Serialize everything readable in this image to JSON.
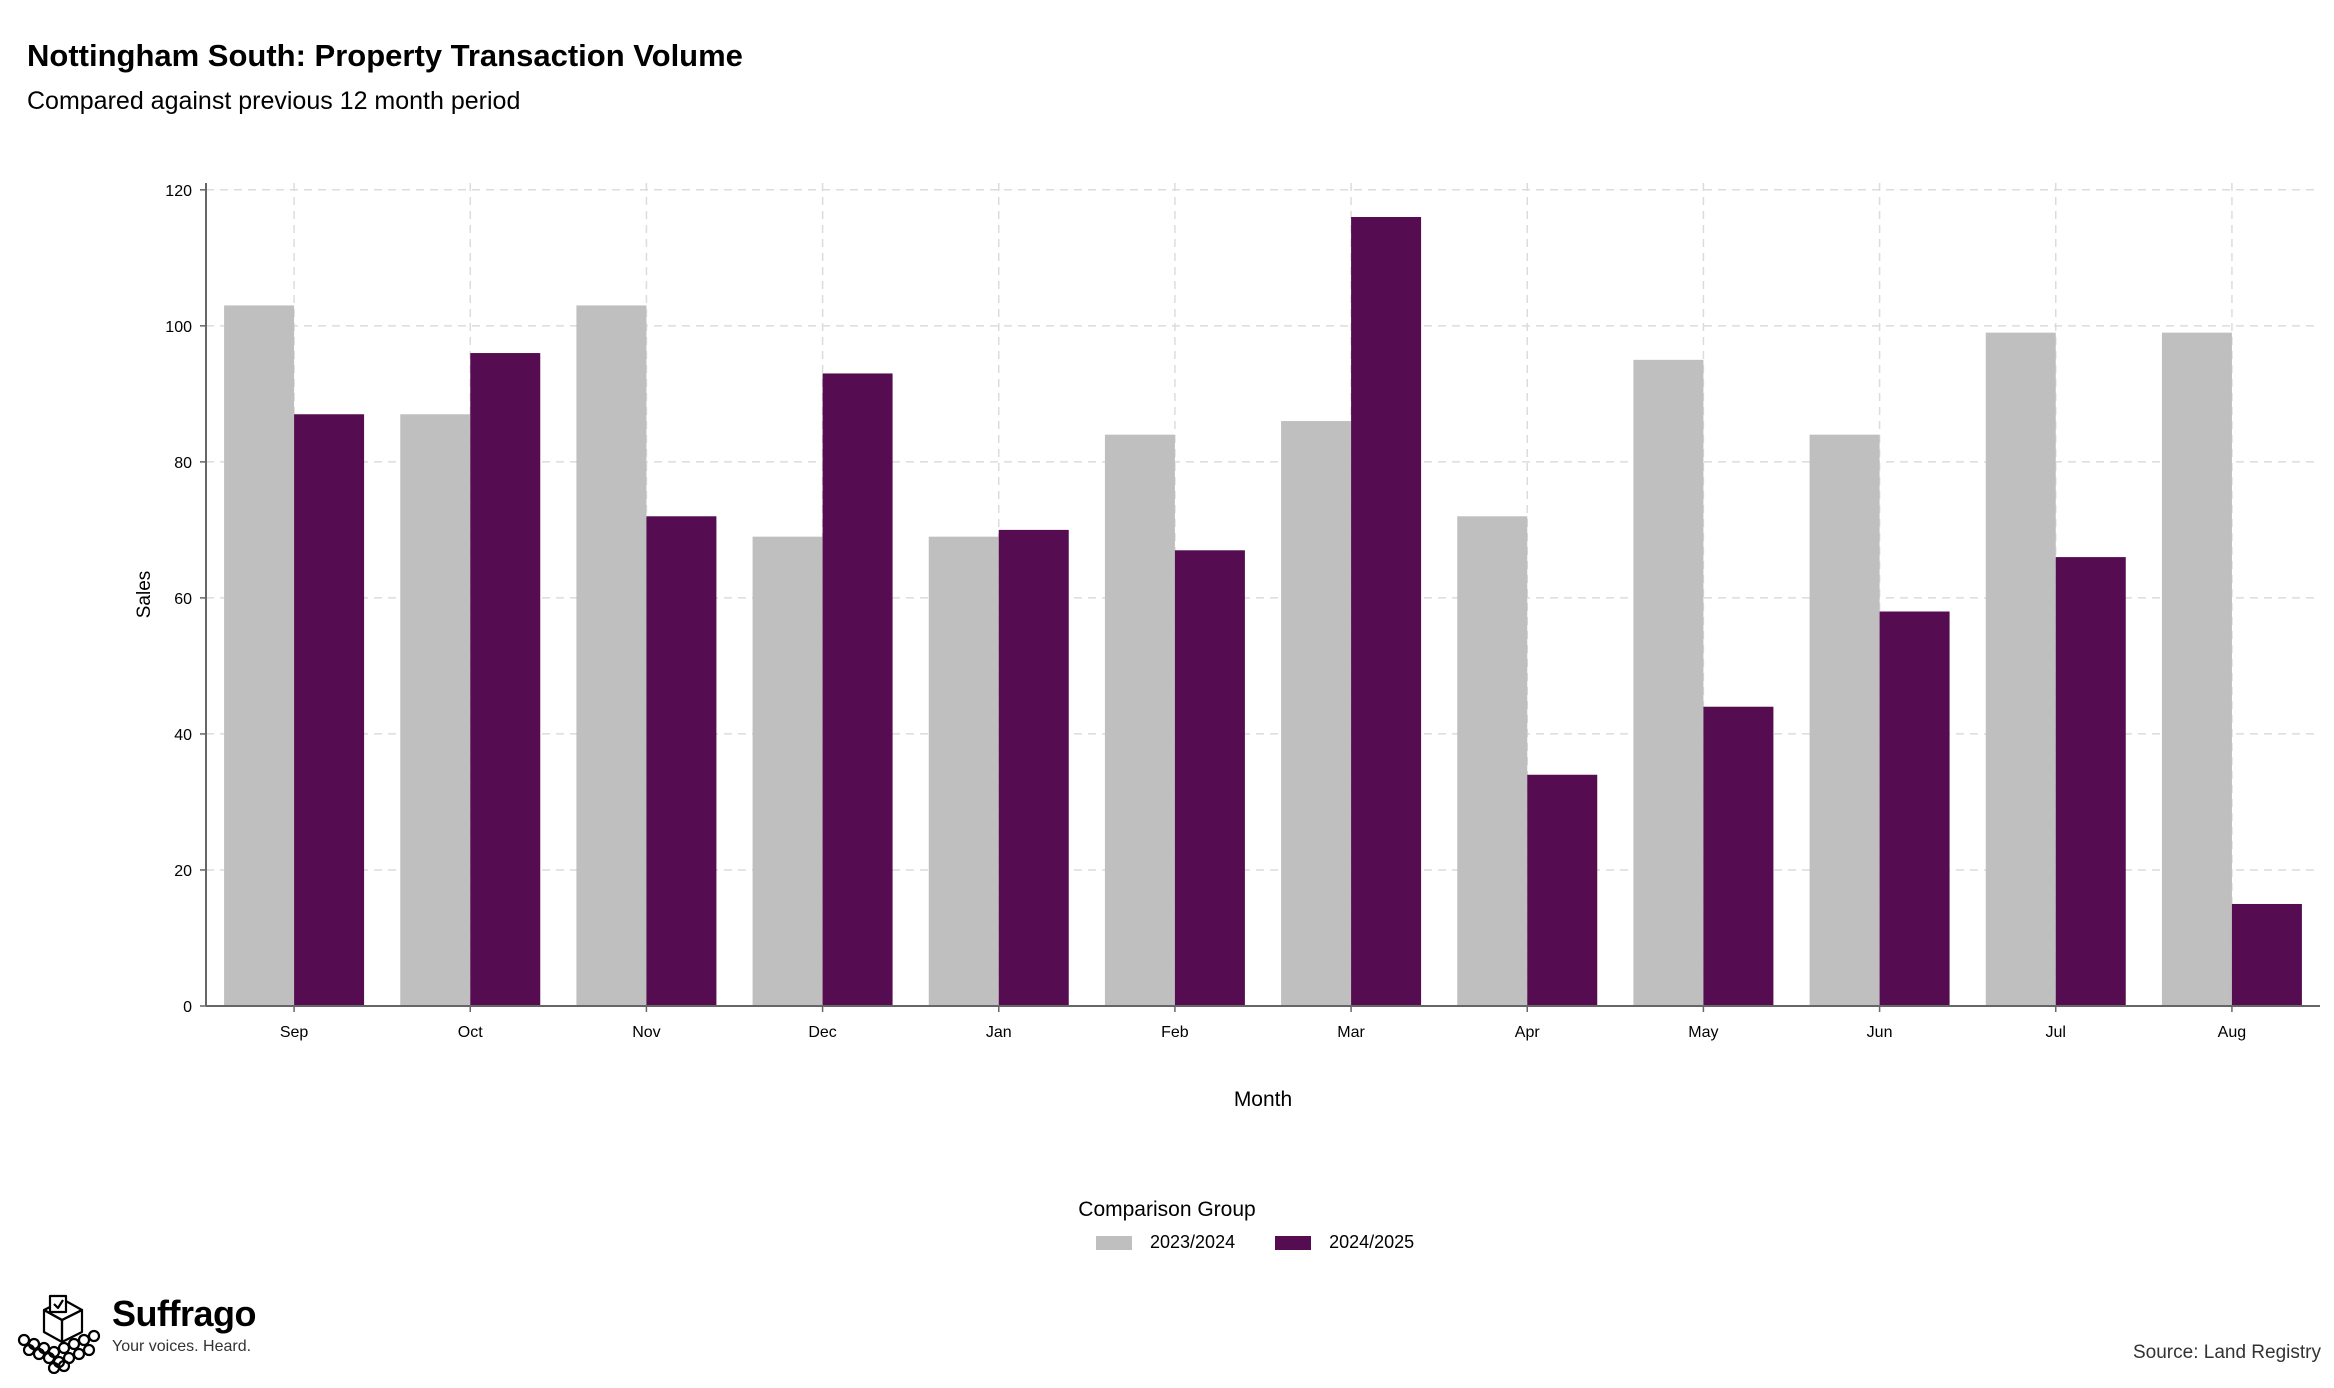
{
  "header": {
    "title": "Nottingham South: Property Transaction Volume",
    "subtitle": "Compared against previous 12 month period"
  },
  "legend": {
    "title": "Comparison Group",
    "items": [
      {
        "label": "2023/2024",
        "color": "#bfbfbf"
      },
      {
        "label": "2024/2025",
        "color": "#560c51"
      }
    ]
  },
  "brand": {
    "name": "Suffrago",
    "tagline": "Your voices. Heard.",
    "logo_icon": "ballot-box-icon"
  },
  "footer": {
    "source": "Source: Land Registry"
  },
  "chart_data": {
    "type": "bar",
    "xlabel": "Month",
    "ylabel": "Sales",
    "ylim": [
      0,
      121
    ],
    "yticks": [
      0,
      20,
      40,
      60,
      80,
      100,
      120
    ],
    "grid": true,
    "legend_position": "bottom",
    "categories": [
      "Sep",
      "Oct",
      "Nov",
      "Dec",
      "Jan",
      "Feb",
      "Mar",
      "Apr",
      "May",
      "Jun",
      "Jul",
      "Aug"
    ],
    "series": [
      {
        "name": "2023/2024",
        "color": "#bfbfbf",
        "values": [
          103,
          87,
          103,
          69,
          69,
          84,
          86,
          72,
          95,
          84,
          99,
          99
        ]
      },
      {
        "name": "2024/2025",
        "color": "#560c51",
        "values": [
          87,
          96,
          72,
          93,
          70,
          67,
          116,
          34,
          44,
          58,
          66,
          15
        ]
      }
    ]
  }
}
